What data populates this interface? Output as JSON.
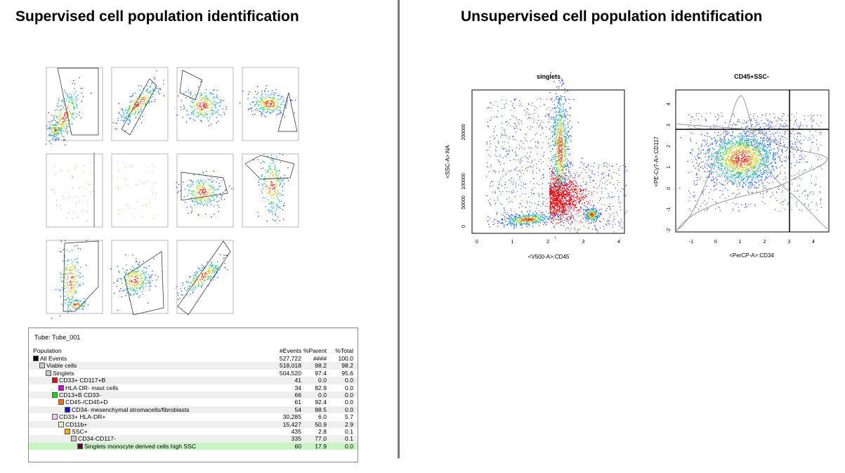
{
  "titles": {
    "supervised": "Supervised cell population identification",
    "unsupervised": "Unsupervised cell population identification"
  },
  "big_plots": [
    {
      "title": "singlets",
      "xlabel": "<V500-A>:CD45",
      "ylabel": "<SSC-A>:NA",
      "xticks": [
        "0",
        "1",
        "2",
        "3",
        "4"
      ],
      "yticks": [
        "0",
        "50000",
        "100000",
        "200000"
      ]
    },
    {
      "title": "CD45+SSC-",
      "xlabel": "<PerCP-A>:CD34",
      "ylabel": "<PE-Cy7-A>:CD117",
      "xticks": [
        "-1",
        "0",
        "1",
        "2",
        "3",
        "4"
      ],
      "yticks": [
        "-2",
        "-1",
        "0",
        "1",
        "2",
        "3",
        "4"
      ]
    }
  ],
  "table": {
    "tube": "Tube:  Tube_001",
    "headers": {
      "population": "Population",
      "events": "#Events",
      "parent": "%Parent",
      "total": "%Total"
    },
    "rows": [
      {
        "name": "All Events",
        "events": "527,722",
        "parent": "####",
        "total": "100.0",
        "color": "#000000",
        "depth": 0
      },
      {
        "name": "Viable cells",
        "events": "518,018",
        "parent": "98.2",
        "total": "98.2",
        "color": "#c8c8c8",
        "depth": 1
      },
      {
        "name": "Singlets",
        "events": "504,520",
        "parent": "97.4",
        "total": "95.6",
        "color": "#c8c8c8",
        "depth": 2
      },
      {
        "name": "CD33+ CD117+B",
        "events": "41",
        "parent": "0.0",
        "total": "0.0",
        "color": "#e8000b",
        "depth": 3
      },
      {
        "name": "HLA-DR- mast cells",
        "events": "34",
        "parent": "82.9",
        "total": "0.0",
        "color": "#cc00cc",
        "depth": 4
      },
      {
        "name": "CD13+B CD33-",
        "events": "66",
        "parent": "0.0",
        "total": "0.0",
        "color": "#00dd00",
        "depth": 3
      },
      {
        "name": "CD45-/CD45+D",
        "events": "61",
        "parent": "92.4",
        "total": "0.0",
        "color": "#f07000",
        "depth": 4
      },
      {
        "name": "CD34- mesenchymal stromacells/fibroblasts",
        "events": "54",
        "parent": "88.5",
        "total": "0.0",
        "color": "#1010dd",
        "depth": 5
      },
      {
        "name": "CD33+ HLA-DR+",
        "events": "30,285",
        "parent": "6.0",
        "total": "5.7",
        "color": "#f7c8f0",
        "depth": 3
      },
      {
        "name": "CD11b+",
        "events": "15,427",
        "parent": "50.9",
        "total": "2.9",
        "color": "#dff5c8",
        "depth": 4
      },
      {
        "name": "SSC+",
        "events": "435",
        "parent": "2.8",
        "total": "0.1",
        "color": "#f2b000",
        "depth": 5
      },
      {
        "name": "CD34-CD117-",
        "events": "335",
        "parent": "77.0",
        "total": "0.1",
        "color": "#c8c8c8",
        "depth": 6
      },
      {
        "name": "Singlets monocyte derived cells high SSC",
        "events": "60",
        "parent": "17.9",
        "total": "0.0",
        "color": "#600040",
        "depth": 7
      }
    ]
  }
}
